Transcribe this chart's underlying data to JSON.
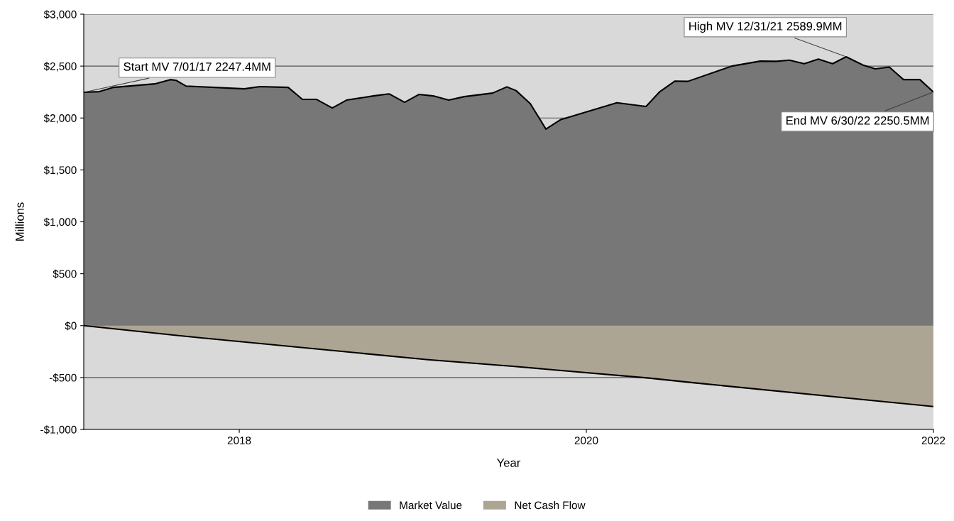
{
  "chart_data": {
    "type": "area",
    "xlabel": "Year",
    "ylabel": "Millions",
    "xlim": [
      2017.104,
      2022
    ],
    "xticks": [
      2018,
      2020,
      2022
    ],
    "ylim": [
      -1000,
      3000
    ],
    "yticks": [
      {
        "value": -1000,
        "label": "-$1,000"
      },
      {
        "value": -500,
        "label": "-$500"
      },
      {
        "value": 0,
        "label": "$0"
      },
      {
        "value": 500,
        "label": "$500"
      },
      {
        "value": 1000,
        "label": "$1,000"
      },
      {
        "value": 1500,
        "label": "$1,500"
      },
      {
        "value": 2000,
        "label": "$2,000"
      },
      {
        "value": 2500,
        "label": "$2,500"
      },
      {
        "value": 3000,
        "label": "$3,000"
      }
    ],
    "grid": "y",
    "legend": "bottom",
    "series": [
      {
        "name": "Market Value",
        "color": "#777777",
        "x": [
          2017.104,
          2017.194,
          2017.276,
          2017.513,
          2017.603,
          2017.636,
          2017.693,
          2018.029,
          2018.119,
          2018.282,
          2018.364,
          2018.446,
          2018.536,
          2018.618,
          2018.773,
          2018.863,
          2018.953,
          2019.035,
          2019.117,
          2019.207,
          2019.297,
          2019.46,
          2019.542,
          2019.595,
          2019.677,
          2019.767,
          2019.853,
          2020.176,
          2020.344,
          2020.421,
          2020.511,
          2020.585,
          2020.838,
          2021.002,
          2021.096,
          2021.17,
          2021.256,
          2021.337,
          2021.419,
          2021.497,
          2021.595,
          2021.665,
          2021.746,
          2021.828,
          2021.922,
          2022
        ],
        "values": [
          2247.4,
          2254,
          2295,
          2329,
          2370,
          2363,
          2308,
          2281,
          2302,
          2295,
          2179,
          2179,
          2097,
          2172,
          2213,
          2233,
          2151,
          2227,
          2213,
          2172,
          2206,
          2240,
          2300,
          2264,
          2139,
          1893,
          1985,
          2147,
          2111,
          2250,
          2356,
          2353,
          2500,
          2548,
          2546,
          2557,
          2523,
          2568,
          2523,
          2589.9,
          2509,
          2473,
          2490,
          2370,
          2370,
          2250.5
        ]
      },
      {
        "name": "Net Cash Flow",
        "color": "#ada594",
        "x": [
          2017.104,
          2017.75,
          2019.088,
          2019.587,
          2020.36,
          2020.634,
          2022
        ],
        "values": [
          0,
          -113,
          -328,
          -393,
          -505,
          -553,
          -779
        ]
      }
    ],
    "annotations": [
      {
        "text": "Start MV 7/01/17 2247.4MM",
        "x": 2017.104,
        "y": 2247.4
      },
      {
        "text": "High MV 12/31/21 2589.9MM",
        "x": 2021.497,
        "y": 2589.9
      },
      {
        "text": "End MV 6/30/22 2250.5MM",
        "x": 2022,
        "y": 2250.5
      }
    ]
  }
}
